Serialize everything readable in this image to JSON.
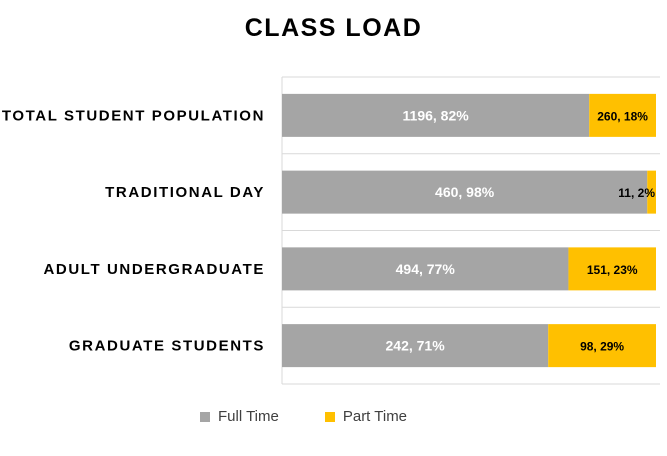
{
  "chart_data": {
    "type": "bar",
    "orientation": "horizontal",
    "stacked": true,
    "normalized": true,
    "title": "CLASS LOAD",
    "categories": [
      "TOTAL STUDENT POPULATION",
      "TRADITIONAL DAY",
      "ADULT UNDERGRADUATE",
      "GRADUATE STUDENTS"
    ],
    "series": [
      {
        "name": "Full Time",
        "color": "#A5A5A5",
        "values": [
          1196,
          460,
          494,
          242
        ],
        "percents": [
          82,
          98,
          77,
          71
        ],
        "labels": [
          "1196, 82%",
          "460, 98%",
          "494, 77%",
          "242, 71%"
        ]
      },
      {
        "name": "Part Time",
        "color": "#FFC000",
        "values": [
          260,
          11,
          151,
          98
        ],
        "percents": [
          18,
          2,
          23,
          29
        ],
        "labels": [
          "260, 18%",
          "11, 2%",
          "151, 23%",
          "98, 29%"
        ]
      }
    ],
    "legend_position": "bottom",
    "grid": true
  }
}
